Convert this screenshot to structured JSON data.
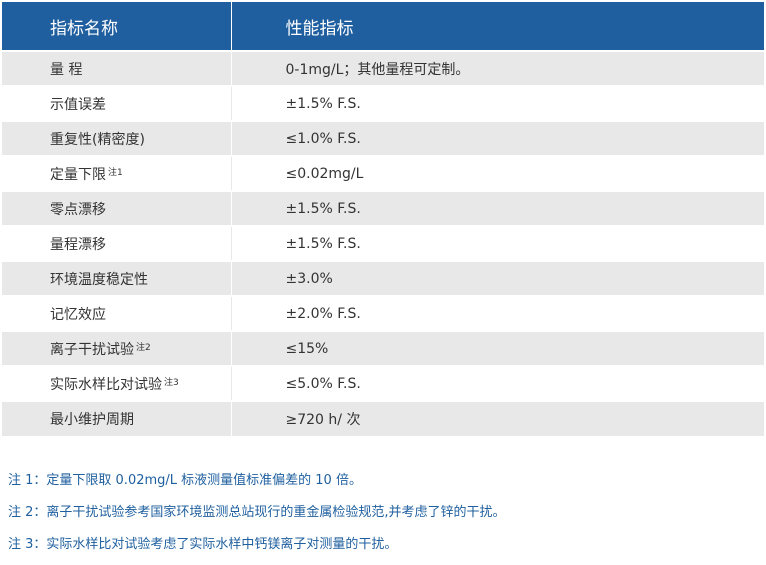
{
  "table": {
    "headers": [
      "指标名称",
      "性能指标"
    ],
    "rows": [
      {
        "name": "量 程",
        "note": "",
        "value": "0-1mg/L；其他量程可定制。"
      },
      {
        "name": "示值误差",
        "note": "",
        "value": "±1.5% F.S."
      },
      {
        "name": "重复性(精密度)",
        "note": "",
        "value": "≤1.0% F.S."
      },
      {
        "name": "定量下限",
        "note": "注1",
        "value": "≤0.02mg/L"
      },
      {
        "name": "零点漂移",
        "note": "",
        "value": "±1.5% F.S."
      },
      {
        "name": "量程漂移",
        "note": "",
        "value": "±1.5% F.S."
      },
      {
        "name": "环境温度稳定性",
        "note": "",
        "value": "±3.0%"
      },
      {
        "name": "记忆效应",
        "note": "",
        "value": "±2.0% F.S."
      },
      {
        "name": "离子干扰试验",
        "note": "注2",
        "value": "≤15%"
      },
      {
        "name": "实际水样比对试验",
        "note": "注3",
        "value": "≤5.0% F.S."
      },
      {
        "name": "最小维护周期",
        "note": "",
        "value": "≥720 h/ 次"
      }
    ]
  },
  "notes": [
    "注 1：定量下限取 0.02mg/L 标液测量值标准偏差的 10 倍。",
    "注 2：离子干扰试验参考国家环境监测总站现行的重金属检验规范,并考虑了锌的干扰。",
    "注 3：实际水样比对试验考虑了实际水样中钙镁离子对测量的干扰。"
  ],
  "colors": {
    "header_bg": "#1f5f9f",
    "row_shade": "#e8e8e8",
    "note_text": "#1f5f9f"
  }
}
